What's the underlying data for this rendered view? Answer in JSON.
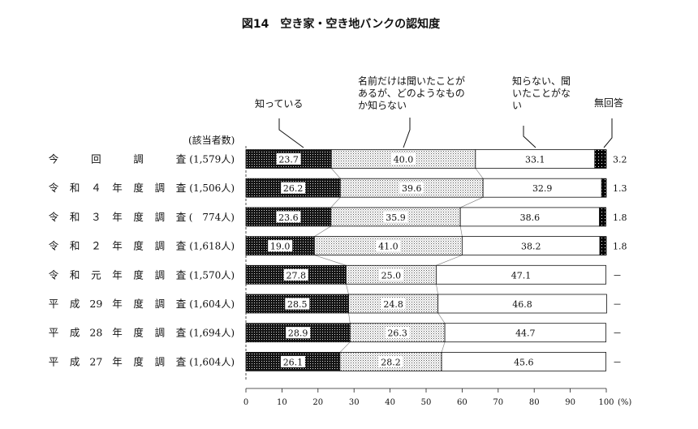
{
  "chart_data": {
    "type": "bar",
    "orientation": "horizontal",
    "stacked": true,
    "title": "図14　空き家・空き地バンクの認知度",
    "count_header": "(該当者数)",
    "xlim": [
      0,
      100
    ],
    "xticks": [
      "0",
      "10",
      "20",
      "30",
      "40",
      "50",
      "60",
      "70",
      "80",
      "90",
      "100"
    ],
    "x_unit": "(%)",
    "categories": [
      "今回調査",
      "令和４年度調査",
      "令和３年度調査",
      "令和２年度調査",
      "令和元年度調査",
      "平成29年度調査",
      "平成28年度調査",
      "平成27年度調査"
    ],
    "category_chars": [
      [
        "今",
        "回",
        "調",
        "査"
      ],
      [
        "令",
        "和",
        "４",
        "年",
        "度",
        "調",
        "査"
      ],
      [
        "令",
        "和",
        "３",
        "年",
        "度",
        "調",
        "査"
      ],
      [
        "令",
        "和",
        "２",
        "年",
        "度",
        "調",
        "査"
      ],
      [
        "令",
        "和",
        "元",
        "年",
        "度",
        "調",
        "査"
      ],
      [
        "平",
        "成",
        "29",
        "年",
        "度",
        "調",
        "査"
      ],
      [
        "平",
        "成",
        "28",
        "年",
        "度",
        "調",
        "査"
      ],
      [
        "平",
        "成",
        "27",
        "年",
        "度",
        "調",
        "査"
      ]
    ],
    "counts": [
      "(1,579人)",
      "(1,506人)",
      "(　774人)",
      "(1,618人)",
      "(1,570人)",
      "(1,604人)",
      "(1,694人)",
      "(1,604人)"
    ],
    "series": [
      {
        "name": "知っている",
        "pattern": "dense-dark",
        "values": [
          23.7,
          26.2,
          23.6,
          19.0,
          27.8,
          28.5,
          28.9,
          26.1
        ],
        "labels": [
          "23.7",
          "26.2",
          "23.6",
          "19.0",
          "27.8",
          "28.5",
          "28.9",
          "26.1"
        ]
      },
      {
        "name": "名前だけは聞いたことがあるが、どのようなものか知らない",
        "pattern": "light-dots",
        "name_lines": [
          "名前だけは聞いたことが",
          "あるが、どのようなもの",
          "か知らない"
        ],
        "values": [
          40.0,
          39.6,
          35.9,
          41.0,
          25.0,
          24.8,
          26.3,
          28.2
        ],
        "labels": [
          "40.0",
          "39.6",
          "35.9",
          "41.0",
          "25.0",
          "24.8",
          "26.3",
          "28.2"
        ]
      },
      {
        "name": "知らない、聞いたことがない",
        "pattern": "white",
        "name_lines": [
          "知らない、聞",
          "いたことがな",
          "い"
        ],
        "values": [
          33.1,
          32.9,
          38.6,
          38.2,
          47.1,
          46.8,
          44.7,
          45.6
        ],
        "labels": [
          "33.1",
          "32.9",
          "38.6",
          "38.2",
          "47.1",
          "46.8",
          "44.7",
          "45.6"
        ]
      },
      {
        "name": "無回答",
        "pattern": "black",
        "values": [
          3.2,
          1.3,
          1.8,
          1.8,
          0,
          0,
          0,
          0
        ],
        "labels": [
          "3.2",
          "1.3",
          "1.8",
          "1.8",
          "－",
          "－",
          "－",
          "－"
        ]
      }
    ],
    "legend_placement": "top, callout lines",
    "grid": false
  }
}
